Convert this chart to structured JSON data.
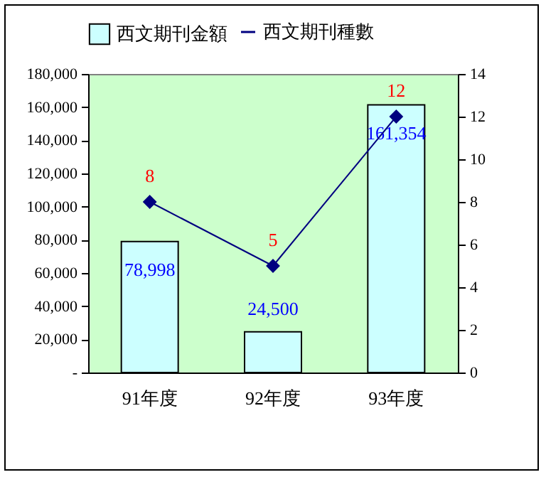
{
  "chart_data": {
    "type": "bar",
    "categories": [
      "91年度",
      "92年度",
      "93年度"
    ],
    "series": [
      {
        "name": "西文期刊金額",
        "color": "#ccffff",
        "values": [
          78998,
          24500,
          161354
        ],
        "value_labels": [
          "78,998",
          "24,500",
          "161,354"
        ]
      },
      {
        "name": "西文期刊種數",
        "type": "line",
        "axis": "y2",
        "color": "#000080",
        "values": [
          8,
          5,
          12
        ],
        "value_labels": [
          "8",
          "5",
          "12"
        ]
      }
    ],
    "ylim": [
      0,
      180000
    ],
    "yticks": [
      {
        "value": 0,
        "label": "-"
      },
      {
        "value": 20000,
        "label": "20,000"
      },
      {
        "value": 40000,
        "label": "40,000"
      },
      {
        "value": 60000,
        "label": "60,000"
      },
      {
        "value": 80000,
        "label": "80,000"
      },
      {
        "value": 100000,
        "label": "100,000"
      },
      {
        "value": 120000,
        "label": "120,000"
      },
      {
        "value": 140000,
        "label": "140,000"
      },
      {
        "value": 160000,
        "label": "160,000"
      },
      {
        "value": 180000,
        "label": "180,000"
      }
    ],
    "y2lim": [
      0,
      14
    ],
    "y2ticks": [
      0,
      2,
      4,
      6,
      8,
      10,
      12,
      14
    ],
    "legend": "top",
    "grid": false,
    "marker": "diamond",
    "line_style": "solid"
  }
}
